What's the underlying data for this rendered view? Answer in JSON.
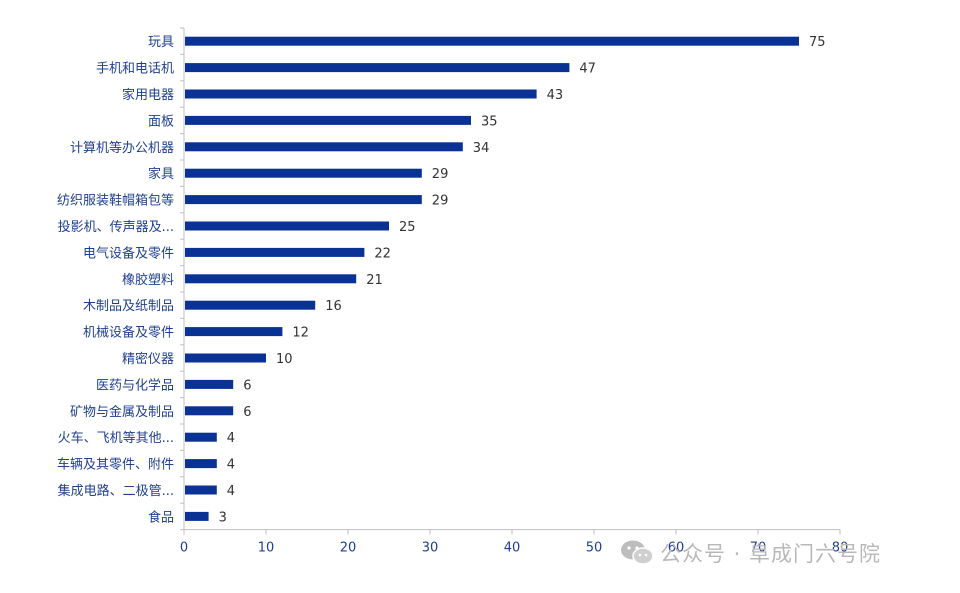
{
  "chart_data": {
    "type": "bar",
    "orientation": "horizontal",
    "categories": [
      "玩具",
      "手机和电话机",
      "家用电器",
      "面板",
      "计算机等办公机器",
      "家具",
      "纺织服装鞋帽箱包等",
      "投影机、传声器及...",
      "电气设备及零件",
      "橡胶塑料",
      "木制品及纸制品",
      "机械设备及零件",
      "精密仪器",
      "医药与化学品",
      "矿物与金属及制品",
      "火车、飞机等其他...",
      "车辆及其零件、附件",
      "集成电路、二极管...",
      "食品"
    ],
    "values": [
      75,
      47,
      43,
      35,
      34,
      29,
      29,
      25,
      22,
      21,
      16,
      12,
      10,
      6,
      6,
      4,
      4,
      4,
      3
    ],
    "value_labels": [
      "75",
      "47",
      "43",
      "35",
      "34",
      "29",
      "29",
      "25",
      "22",
      "21",
      "16",
      "12",
      "10",
      "6",
      "6",
      "4",
      "4",
      "4",
      "3"
    ],
    "xlim": [
      0,
      80
    ],
    "xticks": [
      "0",
      "10",
      "20",
      "30",
      "40",
      "50",
      "60",
      "70",
      "80"
    ],
    "bar_color": "#0a3294",
    "title": "",
    "xlabel": "",
    "ylabel": "",
    "grid": false,
    "legend": "none"
  },
  "watermark": {
    "icon": "wechat-icon",
    "text": "公众号 · 阜成门六号院"
  }
}
